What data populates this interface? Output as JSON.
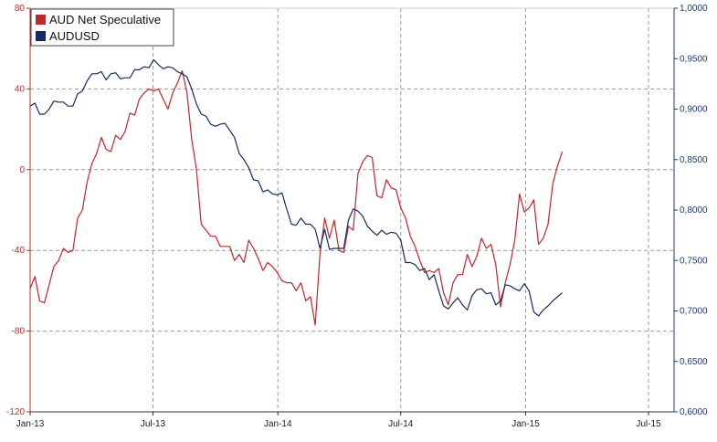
{
  "chart_data": {
    "type": "line",
    "x_ticks": [
      "Jan-13",
      "Jul-13",
      "Jan-14",
      "Jul-14",
      "Jan-15",
      "Jul-15"
    ],
    "x_tick_values": [
      "2013-01-01",
      "2013-07-01",
      "2014-01-01",
      "2014-07-01",
      "2015-01-01",
      "2015-07-01"
    ],
    "y_left": {
      "min": -120,
      "max": 80,
      "ticks": [
        80,
        40,
        0,
        -40,
        -80,
        -120
      ],
      "color": "#b03030"
    },
    "y_right": {
      "min": 0.6,
      "max": 1.0,
      "ticks": [
        "1,0000",
        "0,9500",
        "0,9000",
        "0,8500",
        "0,8000",
        "0,7500",
        "0,7000",
        "0,6500",
        "0,6000"
      ],
      "tick_values": [
        1.0,
        0.95,
        0.9,
        0.85,
        0.8,
        0.75,
        0.7,
        0.65,
        0.6
      ],
      "color": "#1d3b72"
    },
    "grid": true,
    "legend": {
      "position": "top-left"
    },
    "series": [
      {
        "name": "AUD Net Speculative",
        "axis": "left",
        "color": "#c0282d",
        "points": [
          [
            "2013-01-01",
            -59
          ],
          [
            "2013-01-08",
            -53
          ],
          [
            "2013-01-15",
            -65
          ],
          [
            "2013-01-22",
            -66
          ],
          [
            "2013-01-29",
            -57
          ],
          [
            "2013-02-05",
            -48
          ],
          [
            "2013-02-12",
            -45
          ],
          [
            "2013-02-19",
            -39
          ],
          [
            "2013-02-26",
            -41
          ],
          [
            "2013-03-05",
            -40
          ],
          [
            "2013-03-12",
            -24
          ],
          [
            "2013-03-19",
            -20
          ],
          [
            "2013-03-26",
            -6
          ],
          [
            "2013-04-02",
            3
          ],
          [
            "2013-04-09",
            8
          ],
          [
            "2013-04-16",
            16
          ],
          [
            "2013-04-23",
            10
          ],
          [
            "2013-04-30",
            9
          ],
          [
            "2013-05-07",
            17
          ],
          [
            "2013-05-14",
            15
          ],
          [
            "2013-05-21",
            19
          ],
          [
            "2013-05-28",
            28
          ],
          [
            "2013-06-04",
            27
          ],
          [
            "2013-06-11",
            35
          ],
          [
            "2013-06-18",
            38
          ],
          [
            "2013-06-25",
            40
          ],
          [
            "2013-07-02",
            39
          ],
          [
            "2013-07-09",
            40
          ],
          [
            "2013-07-16",
            35
          ],
          [
            "2013-07-23",
            30
          ],
          [
            "2013-07-30",
            38
          ],
          [
            "2013-08-06",
            43
          ],
          [
            "2013-08-13",
            49
          ],
          [
            "2013-08-20",
            38
          ],
          [
            "2013-08-27",
            15
          ],
          [
            "2013-09-03",
            0
          ],
          [
            "2013-09-10",
            -27
          ],
          [
            "2013-09-17",
            -30
          ],
          [
            "2013-09-24",
            -33
          ],
          [
            "2013-10-01",
            -33
          ],
          [
            "2013-10-08",
            -38
          ],
          [
            "2013-10-15",
            -38
          ],
          [
            "2013-10-22",
            -38
          ],
          [
            "2013-10-29",
            -45
          ],
          [
            "2013-11-05",
            -42
          ],
          [
            "2013-11-12",
            -46
          ],
          [
            "2013-11-19",
            -35
          ],
          [
            "2013-11-26",
            -39
          ],
          [
            "2013-12-03",
            -44
          ],
          [
            "2013-12-10",
            -50
          ],
          [
            "2013-12-17",
            -46
          ],
          [
            "2013-12-24",
            -48
          ],
          [
            "2013-12-31",
            -51
          ],
          [
            "2014-01-07",
            -55
          ],
          [
            "2014-01-14",
            -56
          ],
          [
            "2014-01-21",
            -56
          ],
          [
            "2014-01-28",
            -60
          ],
          [
            "2014-02-04",
            -56
          ],
          [
            "2014-02-11",
            -65
          ],
          [
            "2014-02-18",
            -63
          ],
          [
            "2014-02-25",
            -77
          ],
          [
            "2014-03-04",
            -42
          ],
          [
            "2014-03-11",
            -24
          ],
          [
            "2014-03-18",
            -34
          ],
          [
            "2014-03-25",
            -25
          ],
          [
            "2014-04-01",
            -40
          ],
          [
            "2014-04-08",
            -41
          ],
          [
            "2014-04-15",
            -28
          ],
          [
            "2014-04-22",
            -30
          ],
          [
            "2014-04-29",
            -2
          ],
          [
            "2014-05-06",
            4
          ],
          [
            "2014-05-13",
            7
          ],
          [
            "2014-05-20",
            6
          ],
          [
            "2014-05-27",
            -13
          ],
          [
            "2014-06-03",
            -14
          ],
          [
            "2014-06-10",
            -5
          ],
          [
            "2014-06-17",
            -9
          ],
          [
            "2014-06-24",
            -10
          ],
          [
            "2014-07-01",
            -19
          ],
          [
            "2014-07-08",
            -24
          ],
          [
            "2014-07-15",
            -33
          ],
          [
            "2014-07-22",
            -38
          ],
          [
            "2014-07-29",
            -45
          ],
          [
            "2014-08-05",
            -51
          ],
          [
            "2014-08-12",
            -50
          ],
          [
            "2014-08-19",
            -51
          ],
          [
            "2014-08-26",
            -49
          ],
          [
            "2014-09-02",
            -61
          ],
          [
            "2014-09-09",
            -67
          ],
          [
            "2014-09-16",
            -56
          ],
          [
            "2014-09-23",
            -52
          ],
          [
            "2014-09-30",
            -52
          ],
          [
            "2014-10-07",
            -42
          ],
          [
            "2014-10-14",
            -48
          ],
          [
            "2014-10-21",
            -43
          ],
          [
            "2014-10-28",
            -34
          ],
          [
            "2014-11-04",
            -39
          ],
          [
            "2014-11-11",
            -37
          ],
          [
            "2014-11-18",
            -47
          ],
          [
            "2014-11-25",
            -68
          ],
          [
            "2014-12-02",
            -56
          ],
          [
            "2014-12-09",
            -47
          ],
          [
            "2014-12-16",
            -35
          ],
          [
            "2014-12-23",
            -12
          ],
          [
            "2014-12-30",
            -21
          ],
          [
            "2015-01-06",
            -19
          ],
          [
            "2015-01-13",
            -15
          ],
          [
            "2015-01-20",
            -37
          ],
          [
            "2015-01-27",
            -34
          ],
          [
            "2015-02-03",
            -27
          ],
          [
            "2015-02-10",
            -7
          ],
          [
            "2015-02-17",
            2
          ],
          [
            "2015-02-24",
            9
          ]
        ]
      },
      {
        "name": "AUDUSD",
        "axis": "right",
        "color": "#132b63",
        "points": [
          [
            "2013-01-01",
            0.903
          ],
          [
            "2013-01-08",
            0.906
          ],
          [
            "2013-01-15",
            0.895
          ],
          [
            "2013-01-22",
            0.895
          ],
          [
            "2013-01-29",
            0.9
          ],
          [
            "2013-02-05",
            0.908
          ],
          [
            "2013-02-12",
            0.907
          ],
          [
            "2013-02-19",
            0.907
          ],
          [
            "2013-02-26",
            0.903
          ],
          [
            "2013-03-05",
            0.903
          ],
          [
            "2013-03-12",
            0.915
          ],
          [
            "2013-03-19",
            0.918
          ],
          [
            "2013-03-26",
            0.928
          ],
          [
            "2013-04-02",
            0.935
          ],
          [
            "2013-04-09",
            0.935
          ],
          [
            "2013-04-16",
            0.937
          ],
          [
            "2013-04-23",
            0.929
          ],
          [
            "2013-04-30",
            0.935
          ],
          [
            "2013-05-07",
            0.936
          ],
          [
            "2013-05-14",
            0.93
          ],
          [
            "2013-05-21",
            0.931
          ],
          [
            "2013-05-28",
            0.931
          ],
          [
            "2013-06-04",
            0.939
          ],
          [
            "2013-06-11",
            0.939
          ],
          [
            "2013-06-18",
            0.942
          ],
          [
            "2013-06-25",
            0.941
          ],
          [
            "2013-07-02",
            0.949
          ],
          [
            "2013-07-09",
            0.944
          ],
          [
            "2013-07-16",
            0.94
          ],
          [
            "2013-07-23",
            0.942
          ],
          [
            "2013-07-30",
            0.941
          ],
          [
            "2013-08-06",
            0.937
          ],
          [
            "2013-08-13",
            0.935
          ],
          [
            "2013-08-20",
            0.932
          ],
          [
            "2013-08-27",
            0.92
          ],
          [
            "2013-09-03",
            0.905
          ],
          [
            "2013-09-10",
            0.895
          ],
          [
            "2013-09-17",
            0.893
          ],
          [
            "2013-09-24",
            0.885
          ],
          [
            "2013-10-01",
            0.883
          ],
          [
            "2013-10-08",
            0.885
          ],
          [
            "2013-10-15",
            0.886
          ],
          [
            "2013-10-22",
            0.879
          ],
          [
            "2013-10-29",
            0.872
          ],
          [
            "2013-11-05",
            0.856
          ],
          [
            "2013-11-12",
            0.85
          ],
          [
            "2013-11-19",
            0.842
          ],
          [
            "2013-11-26",
            0.83
          ],
          [
            "2013-12-03",
            0.829
          ],
          [
            "2013-12-10",
            0.818
          ],
          [
            "2013-12-17",
            0.82
          ],
          [
            "2013-12-24",
            0.816
          ],
          [
            "2013-12-31",
            0.815
          ],
          [
            "2014-01-07",
            0.817
          ],
          [
            "2014-01-14",
            0.801
          ],
          [
            "2014-01-21",
            0.786
          ],
          [
            "2014-01-28",
            0.785
          ],
          [
            "2014-02-04",
            0.792
          ],
          [
            "2014-02-11",
            0.786
          ],
          [
            "2014-02-18",
            0.786
          ],
          [
            "2014-02-25",
            0.781
          ],
          [
            "2014-03-04",
            0.762
          ],
          [
            "2014-03-11",
            0.781
          ],
          [
            "2014-03-18",
            0.761
          ],
          [
            "2014-03-25",
            0.762
          ],
          [
            "2014-04-01",
            0.762
          ],
          [
            "2014-04-08",
            0.762
          ],
          [
            "2014-04-15",
            0.79
          ],
          [
            "2014-04-22",
            0.801
          ],
          [
            "2014-04-29",
            0.799
          ],
          [
            "2014-05-06",
            0.794
          ],
          [
            "2014-05-13",
            0.784
          ],
          [
            "2014-05-20",
            0.779
          ],
          [
            "2014-05-27",
            0.775
          ],
          [
            "2014-06-03",
            0.78
          ],
          [
            "2014-06-10",
            0.776
          ],
          [
            "2014-06-17",
            0.778
          ],
          [
            "2014-06-24",
            0.777
          ],
          [
            "2014-07-01",
            0.77
          ],
          [
            "2014-07-08",
            0.748
          ],
          [
            "2014-07-15",
            0.748
          ],
          [
            "2014-07-22",
            0.746
          ],
          [
            "2014-07-29",
            0.74
          ],
          [
            "2014-08-05",
            0.742
          ],
          [
            "2014-08-12",
            0.731
          ],
          [
            "2014-08-19",
            0.736
          ],
          [
            "2014-08-26",
            0.72
          ],
          [
            "2014-09-02",
            0.705
          ],
          [
            "2014-09-09",
            0.702
          ],
          [
            "2014-09-16",
            0.708
          ],
          [
            "2014-09-23",
            0.713
          ],
          [
            "2014-09-30",
            0.706
          ],
          [
            "2014-10-07",
            0.701
          ],
          [
            "2014-10-14",
            0.715
          ],
          [
            "2014-10-21",
            0.721
          ],
          [
            "2014-10-28",
            0.722
          ],
          [
            "2014-11-04",
            0.717
          ],
          [
            "2014-11-11",
            0.718
          ],
          [
            "2014-11-18",
            0.706
          ],
          [
            "2014-11-25",
            0.71
          ],
          [
            "2014-12-02",
            0.726
          ],
          [
            "2014-12-09",
            0.725
          ],
          [
            "2014-12-16",
            0.722
          ],
          [
            "2014-12-23",
            0.72
          ],
          [
            "2014-12-30",
            0.727
          ],
          [
            "2015-01-06",
            0.72
          ],
          [
            "2015-01-13",
            0.699
          ],
          [
            "2015-01-20",
            0.695
          ],
          [
            "2015-01-27",
            0.701
          ],
          [
            "2015-02-03",
            0.705
          ],
          [
            "2015-02-10",
            0.71
          ],
          [
            "2015-02-17",
            0.714
          ],
          [
            "2015-02-24",
            0.718
          ]
        ]
      }
    ]
  }
}
